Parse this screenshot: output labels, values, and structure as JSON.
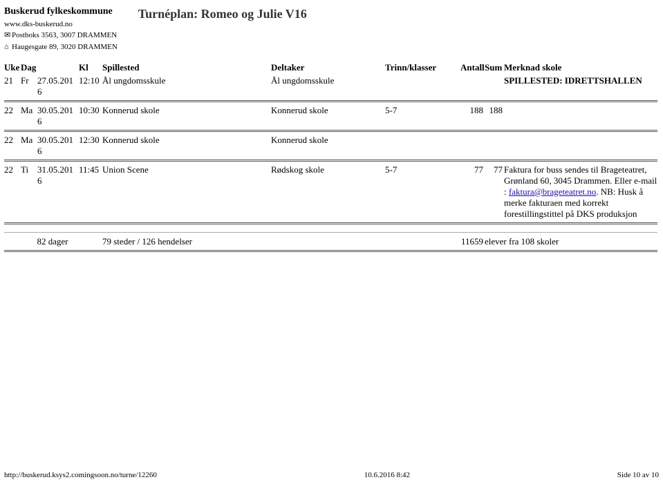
{
  "org": {
    "name": "Buskerud fylkeskommune",
    "url": "www.dks-buskerud.no",
    "addr1": "Postboks 3563, 3007 DRAMMEN",
    "addr2": "Haugesgate 89, 3020 DRAMMEN"
  },
  "title": "Turnéplan: Romeo og Julie V16",
  "headers": {
    "uke": "Uke",
    "dag": "Dag",
    "kl": "Kl",
    "spillested": "Spillested",
    "deltaker": "Deltaker",
    "trinn": "Trinn/klasser",
    "antall": "Antall",
    "sum": "Sum",
    "merknad": "Merknad skole"
  },
  "rows": [
    {
      "uke": "21",
      "dag": "Fr",
      "date": "27.05.2016",
      "kl": "12:10",
      "sted": "Ål ungdomsskule",
      "deltaker": "Ål ungdomsskule",
      "trinn": "",
      "antall": "",
      "sum": "",
      "merknad": "SPILLESTED: IDRETTSHALLEN",
      "bold_merknad": true
    },
    {
      "uke": "22",
      "dag": "Ma",
      "date": "30.05.2016",
      "kl": "10:30",
      "sted": "Konnerud skole",
      "deltaker": "Konnerud skole",
      "trinn": "5-7",
      "antall": "188",
      "sum": "188",
      "merknad": ""
    },
    {
      "uke": "22",
      "dag": "Ma",
      "date": "30.05.2016",
      "kl": "12:30",
      "sted": "Konnerud skole",
      "deltaker": "Konnerud skole",
      "trinn": "",
      "antall": "",
      "sum": "",
      "merknad": ""
    },
    {
      "uke": "22",
      "dag": "Ti",
      "date": "31.05.2016",
      "kl": "11:45",
      "sted": "Union Scene",
      "deltaker": "Rødskog skole",
      "trinn": "5-7",
      "antall": "77",
      "sum": "77",
      "merknad_pre": "Faktura for buss sendes til Brageteatret, Grønland 60, 3045 Drammen. Eller e-mail : ",
      "merknad_link": "faktura@brageteatret.no",
      "merknad_post": ". NB: Husk å merke fakturaen med korrekt forestillingstittel på DKS produksjon"
    }
  ],
  "summary": {
    "dager": "82 dager",
    "steder": "79 steder / 126 hendelser",
    "elever": "11659",
    "elever_suffix": "elever fra 108 skoler"
  },
  "footer": {
    "url": "http://buskerud.ksys2.comingsoon.no/turne/12260",
    "date": "10.6.2016 8:42",
    "page": "Side 10 av 10"
  }
}
